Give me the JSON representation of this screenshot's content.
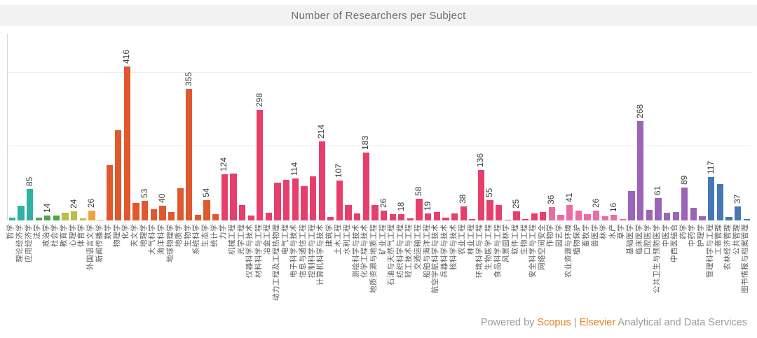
{
  "header": {
    "title": "Number of Researchers per Subject"
  },
  "footer": {
    "powered_by": "Powered by ",
    "scopus": "Scopus",
    "separator": " | ",
    "elsevier": "Elsevier",
    "suffix": " Analytical and Data Services"
  },
  "colors": {
    "econ_teal": "#2fb2a1",
    "law_green": "#4ba64b",
    "edu_olive": "#b8bd4c",
    "lit_orange": "#f2a340",
    "science_vermilion": "#e0582d",
    "engineering_crimson": "#e73f6b",
    "agriculture_pink": "#eb6ba5",
    "medicine_purple": "#9b64b8",
    "management_blue": "#4678b4",
    "gridline": "#ececec",
    "axis": "#d5d5d5"
  },
  "chart_data": {
    "type": "bar",
    "title": "Number of Researchers per Subject",
    "xlabel": "",
    "ylabel": "",
    "ylim": [
      0,
      505
    ],
    "gridlines": [
      200,
      400
    ],
    "legend": false,
    "bars": [
      {
        "label": "哲学",
        "value": 8,
        "show_value": false,
        "group": "econ_teal"
      },
      {
        "label": "理论经济学",
        "value": 40,
        "show_value": false,
        "group": "econ_teal"
      },
      {
        "label": "应用经济学",
        "value": 85,
        "show_value": true,
        "group": "econ_teal"
      },
      {
        "label": "法学",
        "value": 8,
        "show_value": false,
        "group": "law_green"
      },
      {
        "label": "政治学",
        "value": 14,
        "show_value": true,
        "group": "law_green"
      },
      {
        "label": "社会学",
        "value": 14,
        "show_value": false,
        "group": "law_green"
      },
      {
        "label": "教育学",
        "value": 20,
        "show_value": false,
        "group": "edu_olive"
      },
      {
        "label": "心理学",
        "value": 24,
        "show_value": true,
        "group": "edu_olive"
      },
      {
        "label": "体育学",
        "value": 6,
        "show_value": false,
        "group": "edu_olive"
      },
      {
        "label": "外国语言文学",
        "value": 26,
        "show_value": true,
        "group": "lit_orange"
      },
      {
        "label": "新闻传播学",
        "value": 2,
        "show_value": false,
        "group": "lit_orange"
      },
      {
        "label": "数学",
        "value": 150,
        "show_value": false,
        "group": "science_vermilion"
      },
      {
        "label": "物理学",
        "value": 244,
        "show_value": false,
        "group": "science_vermilion"
      },
      {
        "label": "化学",
        "value": 416,
        "show_value": true,
        "group": "science_vermilion"
      },
      {
        "label": "天文学",
        "value": 48,
        "show_value": false,
        "group": "science_vermilion"
      },
      {
        "label": "地理学",
        "value": 53,
        "show_value": true,
        "group": "science_vermilion"
      },
      {
        "label": "大气科学",
        "value": 31,
        "show_value": false,
        "group": "science_vermilion"
      },
      {
        "label": "海洋科学",
        "value": 40,
        "show_value": true,
        "group": "science_vermilion"
      },
      {
        "label": "地球物理学",
        "value": 23,
        "show_value": false,
        "group": "science_vermilion"
      },
      {
        "label": "地质学",
        "value": 88,
        "show_value": false,
        "group": "science_vermilion"
      },
      {
        "label": "生物学",
        "value": 355,
        "show_value": true,
        "group": "science_vermilion"
      },
      {
        "label": "系统科学",
        "value": 15,
        "show_value": false,
        "group": "science_vermilion"
      },
      {
        "label": "生态学",
        "value": 54,
        "show_value": true,
        "group": "science_vermilion"
      },
      {
        "label": "统计学",
        "value": 17,
        "show_value": false,
        "group": "science_vermilion"
      },
      {
        "label": "力学",
        "value": 124,
        "show_value": true,
        "group": "engineering_crimson"
      },
      {
        "label": "机械工程",
        "value": 127,
        "show_value": false,
        "group": "engineering_crimson"
      },
      {
        "label": "光学工程",
        "value": 42,
        "show_value": false,
        "group": "engineering_crimson"
      },
      {
        "label": "仪器科学与技术",
        "value": 13,
        "show_value": false,
        "group": "engineering_crimson"
      },
      {
        "label": "材料科学与工程",
        "value": 298,
        "show_value": true,
        "group": "engineering_crimson"
      },
      {
        "label": "冶金工程",
        "value": 20,
        "show_value": false,
        "group": "engineering_crimson"
      },
      {
        "label": "动力工程及工程热物理",
        "value": 103,
        "show_value": false,
        "group": "engineering_crimson"
      },
      {
        "label": "电气工程",
        "value": 109,
        "show_value": false,
        "group": "engineering_crimson"
      },
      {
        "label": "电子科学与技术",
        "value": 114,
        "show_value": true,
        "group": "engineering_crimson"
      },
      {
        "label": "信息与通信工程",
        "value": 92,
        "show_value": false,
        "group": "engineering_crimson"
      },
      {
        "label": "控制科学与工程",
        "value": 120,
        "show_value": false,
        "group": "engineering_crimson"
      },
      {
        "label": "计算机科学与技术",
        "value": 214,
        "show_value": true,
        "group": "engineering_crimson"
      },
      {
        "label": "建筑学",
        "value": 10,
        "show_value": false,
        "group": "engineering_crimson"
      },
      {
        "label": "土木工程",
        "value": 107,
        "show_value": true,
        "group": "engineering_crimson"
      },
      {
        "label": "水利工程",
        "value": 42,
        "show_value": false,
        "group": "engineering_crimson"
      },
      {
        "label": "测绘科学与技术",
        "value": 19,
        "show_value": false,
        "group": "engineering_crimson"
      },
      {
        "label": "化学工程与技术",
        "value": 183,
        "show_value": true,
        "group": "engineering_crimson"
      },
      {
        "label": "地质资源与地质工程",
        "value": 42,
        "show_value": false,
        "group": "engineering_crimson"
      },
      {
        "label": "矿业工程",
        "value": 26,
        "show_value": true,
        "group": "engineering_crimson"
      },
      {
        "label": "石油与天然气工程",
        "value": 17,
        "show_value": false,
        "group": "engineering_crimson"
      },
      {
        "label": "纺织科学与工程",
        "value": 18,
        "show_value": true,
        "group": "engineering_crimson"
      },
      {
        "label": "轻工技术与工程",
        "value": 5,
        "show_value": false,
        "group": "engineering_crimson"
      },
      {
        "label": "交通运输工程",
        "value": 58,
        "show_value": true,
        "group": "engineering_crimson"
      },
      {
        "label": "船舶与海洋工程",
        "value": 19,
        "show_value": true,
        "group": "engineering_crimson"
      },
      {
        "label": "航空宇航科学与技术",
        "value": 23,
        "show_value": false,
        "group": "engineering_crimson"
      },
      {
        "label": "兵器科学与技术",
        "value": 8,
        "show_value": false,
        "group": "engineering_crimson"
      },
      {
        "label": "核科学与技术",
        "value": 19,
        "show_value": false,
        "group": "engineering_crimson"
      },
      {
        "label": "农业工程",
        "value": 38,
        "show_value": true,
        "group": "engineering_crimson"
      },
      {
        "label": "林业工程",
        "value": 4,
        "show_value": false,
        "group": "engineering_crimson"
      },
      {
        "label": "环境科学与工程",
        "value": 136,
        "show_value": true,
        "group": "engineering_crimson"
      },
      {
        "label": "生物医学工程",
        "value": 55,
        "show_value": true,
        "group": "engineering_crimson"
      },
      {
        "label": "食品科学与工程",
        "value": 42,
        "show_value": false,
        "group": "engineering_crimson"
      },
      {
        "label": "风景园林学",
        "value": 2,
        "show_value": false,
        "group": "engineering_crimson"
      },
      {
        "label": "软件工程",
        "value": 25,
        "show_value": true,
        "group": "engineering_crimson"
      },
      {
        "label": "生物工程",
        "value": 4,
        "show_value": false,
        "group": "engineering_crimson"
      },
      {
        "label": "安全科学与工程",
        "value": 19,
        "show_value": false,
        "group": "engineering_crimson"
      },
      {
        "label": "网络空间安全",
        "value": 23,
        "show_value": false,
        "group": "engineering_crimson"
      },
      {
        "label": "作物学",
        "value": 36,
        "show_value": true,
        "group": "agriculture_pink"
      },
      {
        "label": "园艺学",
        "value": 15,
        "show_value": false,
        "group": "agriculture_pink"
      },
      {
        "label": "农业资源与环境",
        "value": 41,
        "show_value": true,
        "group": "agriculture_pink"
      },
      {
        "label": "植物保护",
        "value": 27,
        "show_value": false,
        "group": "agriculture_pink"
      },
      {
        "label": "畜牧学",
        "value": 17,
        "show_value": false,
        "group": "agriculture_pink"
      },
      {
        "label": "兽医学",
        "value": 26,
        "show_value": true,
        "group": "agriculture_pink"
      },
      {
        "label": "林学",
        "value": 11,
        "show_value": false,
        "group": "agriculture_pink"
      },
      {
        "label": "水产",
        "value": 16,
        "show_value": true,
        "group": "agriculture_pink"
      },
      {
        "label": "草学",
        "value": 3,
        "show_value": false,
        "group": "agriculture_pink"
      },
      {
        "label": "基础医学",
        "value": 80,
        "show_value": false,
        "group": "medicine_purple"
      },
      {
        "label": "临床医学",
        "value": 268,
        "show_value": true,
        "group": "medicine_purple"
      },
      {
        "label": "口腔医学",
        "value": 29,
        "show_value": false,
        "group": "medicine_purple"
      },
      {
        "label": "公共卫生与预防医学",
        "value": 61,
        "show_value": true,
        "group": "medicine_purple"
      },
      {
        "label": "中医学",
        "value": 21,
        "show_value": false,
        "group": "medicine_purple"
      },
      {
        "label": "中西医结合",
        "value": 23,
        "show_value": false,
        "group": "medicine_purple"
      },
      {
        "label": "药学",
        "value": 89,
        "show_value": true,
        "group": "medicine_purple"
      },
      {
        "label": "中药学",
        "value": 35,
        "show_value": false,
        "group": "medicine_purple"
      },
      {
        "label": "护理学",
        "value": 11,
        "show_value": false,
        "group": "medicine_purple"
      },
      {
        "label": "管理科学与工程",
        "value": 117,
        "show_value": true,
        "group": "management_blue"
      },
      {
        "label": "工商管理",
        "value": 99,
        "show_value": false,
        "group": "management_blue"
      },
      {
        "label": "农林经济管理",
        "value": 9,
        "show_value": false,
        "group": "management_blue"
      },
      {
        "label": "公共管理",
        "value": 37,
        "show_value": true,
        "group": "management_blue"
      },
      {
        "label": "图书情报与档案管理",
        "value": 3,
        "show_value": false,
        "group": "management_blue"
      }
    ]
  }
}
